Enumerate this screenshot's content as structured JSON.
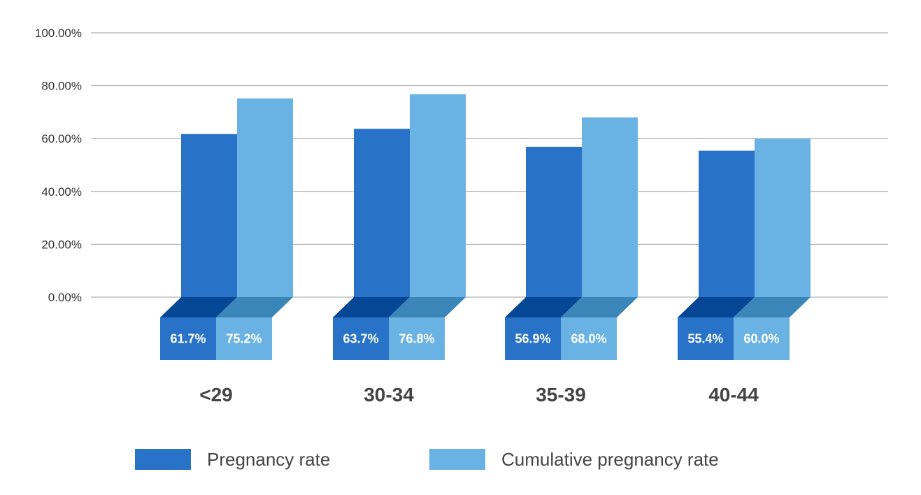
{
  "chart_data": {
    "type": "bar",
    "categories": [
      "<29",
      "30-34",
      "35-39",
      "40-44"
    ],
    "series": [
      {
        "name": "Pregnancy rate",
        "values": [
          61.7,
          63.7,
          56.9,
          55.4
        ],
        "labels": [
          "61.7%",
          "63.7%",
          "56.9%",
          "55.4%"
        ],
        "color": "#2872c8",
        "shade_color": "#054695"
      },
      {
        "name": "Cumulative pregnancy rate",
        "values": [
          75.2,
          76.8,
          68.0,
          60.0
        ],
        "labels": [
          "75.2%",
          "76.8%",
          "68.0%",
          "60.0%"
        ],
        "color": "#6ab2e3",
        "shade_color": "#3b86b8"
      }
    ],
    "y_ticks": [
      "100.00%",
      "80.00%",
      "60.00%",
      "40.00%",
      "20.00%",
      "0.00%"
    ],
    "ylim": [
      0,
      100
    ],
    "grid": true,
    "grid_color": "#9e9e9e",
    "legend_position": "bottom-center"
  }
}
